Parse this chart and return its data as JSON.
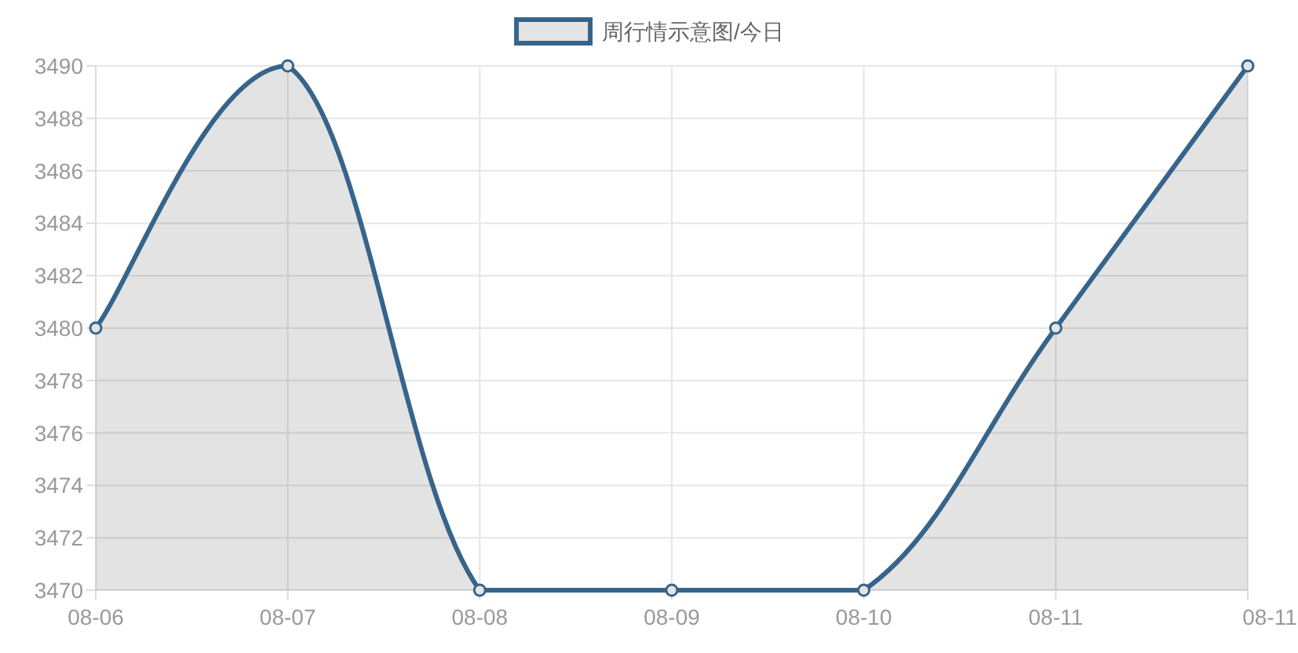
{
  "chart_data": {
    "type": "area",
    "categories": [
      "08-06",
      "08-07",
      "08-08",
      "08-09",
      "08-10",
      "08-11",
      "08-11"
    ],
    "series": [
      {
        "name": "周行情示意图/今日",
        "color": "#36648b",
        "values": [
          3480,
          3490,
          3470,
          3470,
          3470,
          3480,
          3490
        ]
      }
    ],
    "ylim": [
      3470,
      3490
    ],
    "yticks": [
      3470,
      3472,
      3474,
      3476,
      3478,
      3480,
      3482,
      3484,
      3486,
      3488,
      3490
    ],
    "grid": true,
    "legend": "top",
    "marker": "circle"
  }
}
